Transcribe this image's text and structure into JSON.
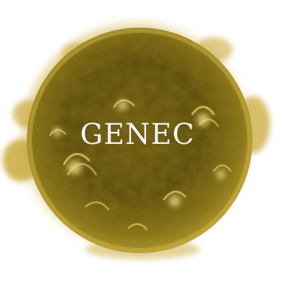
{
  "logo": {
    "text": "GENEC"
  },
  "image": {
    "subject": "sun-image",
    "colors": {
      "background": "#ffffff",
      "disk_bright": "#b59a1e",
      "disk_mid": "#7a6410",
      "disk_dark": "#3b2f04",
      "corona": "#caa93a",
      "text": "#ffffff"
    }
  }
}
